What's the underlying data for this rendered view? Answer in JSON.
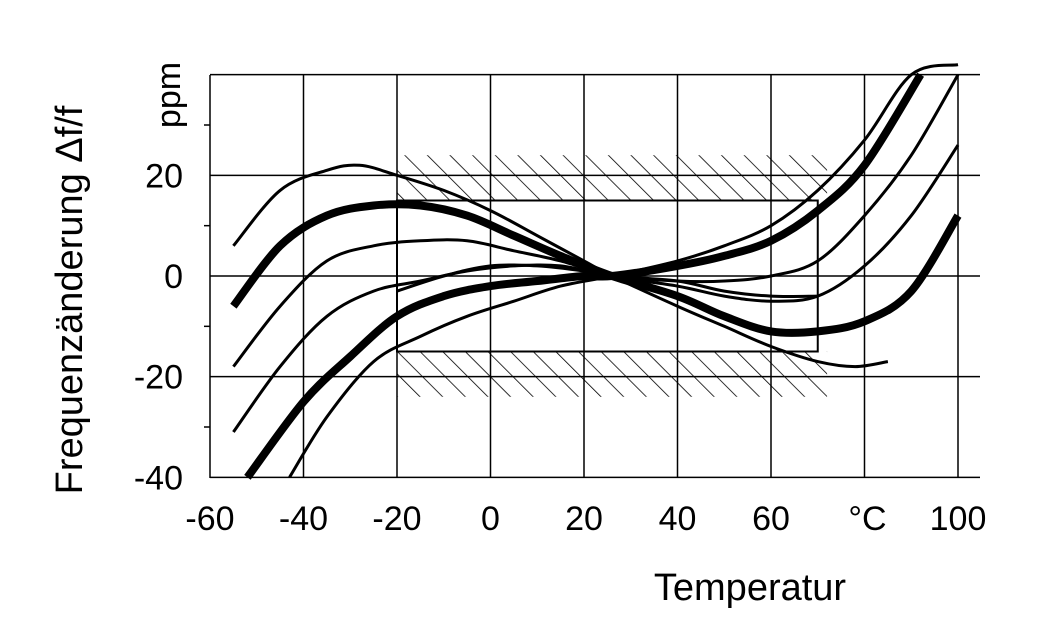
{
  "chart_data": {
    "type": "line",
    "xlabel": "Temperatur",
    "ylabel": "Frequenzänderung Δf/f",
    "yunit": "ppm",
    "xunit": "°C",
    "xlim": [
      -60,
      100
    ],
    "ylim": [
      -40,
      40
    ],
    "xticks": [
      "-60",
      "-40",
      "-20",
      "0",
      "20",
      "40",
      "60",
      "°C",
      "100"
    ],
    "yticks": [
      "20",
      "0",
      "-20",
      "-40"
    ],
    "grid": true,
    "tolerance_band": {
      "x": [
        -20,
        70
      ],
      "y": [
        -15,
        15
      ],
      "hatch_y": [
        [
          15,
          24
        ],
        [
          -24,
          -15
        ]
      ]
    },
    "series": [
      {
        "weight": "thin",
        "x": [
          -55,
          -45,
          -35,
          -28,
          -20,
          -10,
          0,
          10,
          20,
          26,
          40,
          50,
          60,
          70,
          78,
          85
        ],
        "y": [
          6,
          17,
          21,
          22,
          20,
          17,
          13,
          8,
          3,
          0,
          -6,
          -10,
          -14,
          -17,
          -18,
          -17
        ]
      },
      {
        "weight": "thick",
        "x": [
          -55,
          -45,
          -35,
          -25,
          -15,
          -5,
          5,
          15,
          26,
          40,
          50,
          60,
          70,
          80,
          90,
          100
        ],
        "y": [
          -6,
          6,
          12,
          14,
          14,
          12,
          8,
          4,
          0,
          -4,
          -8,
          -11,
          -11,
          -9,
          -3,
          12
        ]
      },
      {
        "weight": "thin",
        "x": [
          -55,
          -45,
          -35,
          -25,
          -15,
          -5,
          5,
          15,
          26,
          40,
          50,
          60,
          70,
          80,
          90,
          100
        ],
        "y": [
          -18,
          -6,
          3,
          6,
          7,
          7,
          5,
          3,
          0,
          -2,
          -4,
          -5,
          -4,
          2,
          12,
          26
        ]
      },
      {
        "weight": "thin",
        "x": [
          -55,
          -45,
          -35,
          -25,
          -15,
          -5,
          5,
          15,
          26,
          40,
          50,
          60,
          70,
          80,
          90,
          100
        ],
        "y": [
          -31,
          -18,
          -8,
          -3,
          -1,
          1,
          2,
          2,
          0,
          -1,
          -1,
          0,
          3,
          12,
          24,
          40
        ]
      },
      {
        "weight": "thick",
        "x": [
          -52,
          -40,
          -30,
          -20,
          -10,
          0,
          10,
          20,
          26,
          40,
          50,
          60,
          70,
          80,
          92
        ],
        "y": [
          -40,
          -25,
          -16,
          -8,
          -4,
          -2,
          -1,
          0,
          0,
          2,
          4,
          7,
          13,
          22,
          40
        ]
      },
      {
        "weight": "thin",
        "x": [
          -43,
          -35,
          -25,
          -15,
          -5,
          5,
          15,
          26,
          40,
          50,
          60,
          70,
          80,
          90,
          100
        ],
        "y": [
          -40,
          -28,
          -17,
          -12,
          -8,
          -5,
          -2,
          0,
          3,
          6,
          10,
          17,
          27,
          40,
          42
        ]
      },
      {
        "weight": "thin",
        "x": [
          -20,
          -10,
          0,
          10,
          20,
          26,
          40,
          50,
          60,
          70
        ],
        "y": [
          -3,
          0,
          2,
          2,
          1,
          0,
          -1,
          -3,
          -4,
          -4
        ]
      }
    ]
  }
}
